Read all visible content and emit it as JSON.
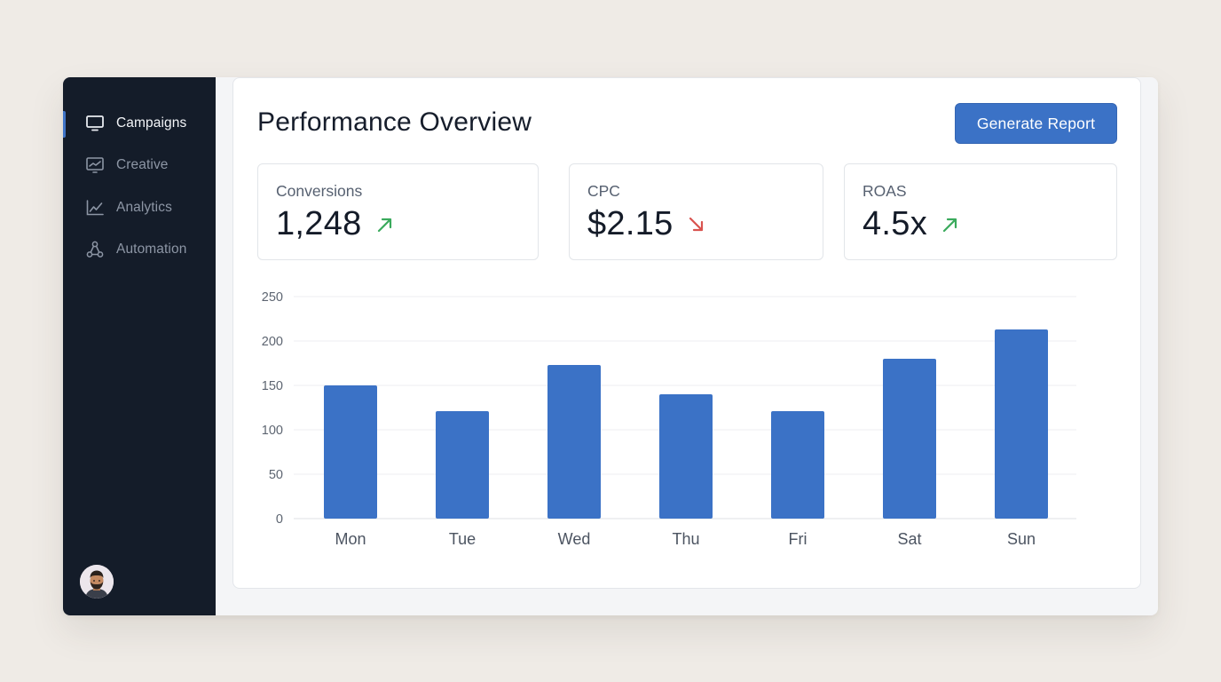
{
  "sidebar": {
    "items": [
      {
        "label": "Campaigns",
        "icon": "monitor-icon",
        "active": true
      },
      {
        "label": "Creative",
        "icon": "chart-board-icon",
        "active": false
      },
      {
        "label": "Analytics",
        "icon": "line-chart-icon",
        "active": false
      },
      {
        "label": "Automation",
        "icon": "workflow-icon",
        "active": false
      }
    ],
    "user_avatar": "user-avatar"
  },
  "header": {
    "title": "Performance Overview",
    "button_label": "Generate Report"
  },
  "kpis": [
    {
      "label": "Conversions",
      "value": "1,248",
      "trend": "up",
      "trend_color": "#3aaa5c"
    },
    {
      "label": "CPC",
      "value": "$2.15",
      "trend": "down",
      "trend_color": "#d9534f"
    },
    {
      "label": "ROAS",
      "value": "4.5x",
      "trend": "up",
      "trend_color": "#3aaa5c"
    }
  ],
  "colors": {
    "accent": "#3b72c6",
    "sidebar_bg": "#141c29",
    "bar": "#3b72c6"
  },
  "chart_data": {
    "type": "bar",
    "categories": [
      "Mon",
      "Tue",
      "Wed",
      "Thu",
      "Fri",
      "Sat",
      "Sun"
    ],
    "values": [
      150,
      121,
      173,
      140,
      121,
      180,
      213
    ],
    "ylim": [
      0,
      250
    ],
    "yticks": [
      0,
      50,
      100,
      150,
      200,
      250
    ],
    "title": "",
    "xlabel": "",
    "ylabel": "",
    "grid": true,
    "legend": "none"
  }
}
